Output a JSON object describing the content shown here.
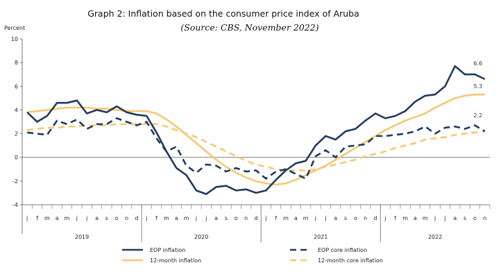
{
  "chart_data": {
    "type": "line",
    "title": "Graph 2: Inflation based on the consumer price index of Aruba",
    "subtitle": "(Source: CBS, November 2022)",
    "ylabel": "Percent",
    "ylim": [
      -4,
      10
    ],
    "yticks": [
      -4,
      -2,
      0,
      2,
      4,
      6,
      8,
      10
    ],
    "grid": false,
    "legend_position": "bottom",
    "months": [
      "j",
      "f",
      "m",
      "a",
      "m",
      "j",
      "j",
      "a",
      "s",
      "o",
      "n",
      "d"
    ],
    "years": [
      "2019",
      "2020",
      "2021",
      "2022"
    ],
    "x_count": 47,
    "series": [
      {
        "name": "EOP inflation",
        "color": "#1f3a5f",
        "dash": "solid",
        "values": [
          3.8,
          3.0,
          3.5,
          4.6,
          4.6,
          4.8,
          3.7,
          4.0,
          3.8,
          4.3,
          3.8,
          3.6,
          3.5,
          2.1,
          0.5,
          -0.9,
          -1.5,
          -2.8,
          -3.1,
          -2.5,
          -2.4,
          -2.8,
          -2.7,
          -3.0,
          -2.8,
          -1.9,
          -1.1,
          -0.5,
          -0.3,
          1.0,
          1.8,
          1.5,
          2.2,
          2.4,
          3.1,
          3.7,
          3.3,
          3.5,
          3.9,
          4.7,
          5.2,
          5.3,
          6.0,
          7.7,
          7.0,
          7.0,
          6.6
        ]
      },
      {
        "name": "EOP core inflation",
        "color": "#1f3a5f",
        "dash": "dashed",
        "values": [
          2.1,
          2.0,
          1.9,
          3.1,
          2.8,
          3.2,
          2.4,
          2.8,
          2.8,
          3.3,
          3.0,
          2.7,
          3.0,
          1.6,
          0.5,
          0.9,
          -0.7,
          -1.3,
          -0.6,
          -0.7,
          -1.2,
          -0.9,
          -1.2,
          -1.1,
          -1.8,
          -1.2,
          -1.0,
          -1.4,
          -1.8,
          0.1,
          0.6,
          0.0,
          0.9,
          1.0,
          1.1,
          1.8,
          1.8,
          1.9,
          2.0,
          2.2,
          2.6,
          2.0,
          2.5,
          2.6,
          2.4,
          2.7,
          2.2
        ]
      },
      {
        "name": "12-month inflation",
        "color": "#f5c872",
        "dash": "solid",
        "values": [
          3.8,
          3.9,
          4.0,
          4.1,
          4.2,
          4.2,
          4.2,
          4.1,
          4.1,
          4.0,
          3.9,
          3.9,
          3.9,
          3.7,
          3.2,
          2.6,
          1.9,
          1.2,
          0.5,
          -0.2,
          -0.8,
          -1.3,
          -1.7,
          -2.0,
          -2.2,
          -2.3,
          -2.2,
          -1.9,
          -1.5,
          -1.1,
          -0.7,
          -0.2,
          0.3,
          0.8,
          1.3,
          1.8,
          2.3,
          2.7,
          3.1,
          3.4,
          3.7,
          4.2,
          4.6,
          5.0,
          5.2,
          5.3,
          5.3
        ]
      },
      {
        "name": "12-month core inflation",
        "color": "#f5c872",
        "dash": "dashed",
        "values": [
          2.3,
          2.4,
          2.5,
          2.5,
          2.6,
          2.6,
          2.7,
          2.7,
          2.7,
          2.8,
          2.8,
          2.8,
          2.8,
          2.8,
          2.6,
          2.3,
          2.0,
          1.7,
          1.3,
          0.9,
          0.5,
          0.1,
          -0.3,
          -0.6,
          -0.8,
          -1.0,
          -1.1,
          -1.1,
          -1.1,
          -1.0,
          -0.8,
          -0.6,
          -0.4,
          -0.2,
          0.1,
          0.3,
          0.5,
          0.8,
          1.0,
          1.2,
          1.5,
          1.6,
          1.7,
          1.9,
          2.0,
          2.1,
          2.2
        ]
      }
    ],
    "data_labels": [
      {
        "series": "EOP inflation",
        "text": "6.6"
      },
      {
        "series": "12-month inflation",
        "text": "5.3"
      },
      {
        "series": "EOP core inflation",
        "text": "2.2"
      }
    ]
  }
}
